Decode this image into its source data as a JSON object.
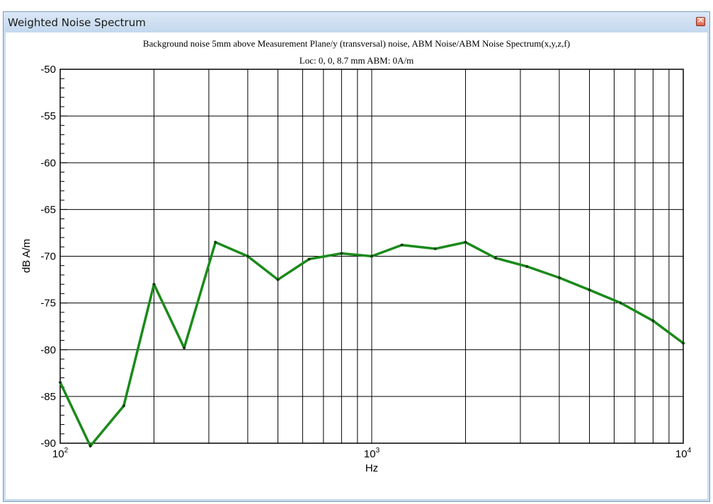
{
  "window": {
    "title": "Weighted Noise Spectrum",
    "close_icon": "close-icon"
  },
  "header": {
    "line1": "Background noise 5mm above Measurement Plane/y (transversal) noise, ABM Noise/ABM Noise Spectrum(x,y,z,f)",
    "line2": "Loc: 0, 0, 8.7 mm ABM: 0A/m"
  },
  "chart_data": {
    "type": "line",
    "xlabel": "Hz",
    "ylabel": "dB A/m",
    "xscale": "log",
    "xlim": [
      100,
      10000
    ],
    "ylim": [
      -90,
      -50
    ],
    "x_tick_labels": [
      {
        "base": "10",
        "exp": "2"
      },
      {
        "base": "10",
        "exp": "3"
      },
      {
        "base": "10",
        "exp": "4"
      }
    ],
    "y_tick_labels": [
      "-50",
      "-55",
      "-60",
      "-65",
      "-70",
      "-75",
      "-80",
      "-85",
      "-90"
    ],
    "grid": true,
    "series": [
      {
        "color": "#1a8a1a",
        "x": [
          100,
          125,
          160,
          200,
          250,
          315,
          400,
          500,
          630,
          800,
          1000,
          1250,
          1600,
          2000,
          2500,
          3150,
          4000,
          5000,
          6300,
          8000,
          10000
        ],
        "values": [
          -83.5,
          -90.3,
          -86.0,
          -73.0,
          -79.8,
          -68.5,
          -70.0,
          -72.5,
          -70.3,
          -69.7,
          -70.0,
          -68.8,
          -69.2,
          -68.5,
          -70.2,
          -71.1,
          -72.3,
          -73.6,
          -75.0,
          -76.9,
          -79.3
        ]
      }
    ]
  }
}
